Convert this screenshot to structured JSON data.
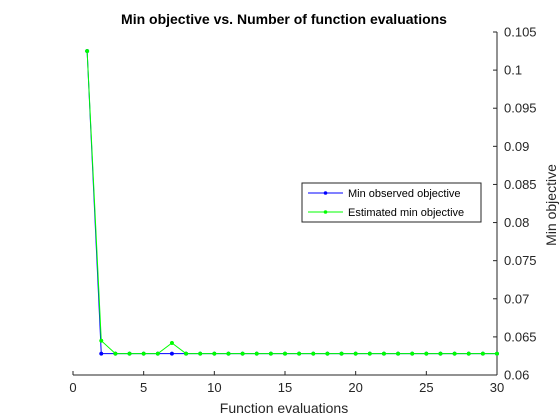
{
  "chart_data": {
    "type": "line",
    "title": "Min objective vs. Number of function evaluations",
    "xlabel": "Function evaluations",
    "ylabel": "Min objective",
    "xlim": [
      0,
      30
    ],
    "ylim": [
      0.06,
      0.105
    ],
    "x_ticks": [
      0,
      5,
      10,
      15,
      20,
      25,
      30
    ],
    "x_tick_labels": [
      "0",
      "5",
      "10",
      "15",
      "20",
      "25",
      "30"
    ],
    "y_ticks": [
      0.06,
      0.065,
      0.07,
      0.075,
      0.08,
      0.085,
      0.09,
      0.095,
      0.1,
      0.105
    ],
    "y_tick_labels": [
      "0.06",
      "0.065",
      "0.07",
      "0.075",
      "0.08",
      "0.085",
      "0.09",
      "0.095",
      "0.1",
      "0.105"
    ],
    "y_axis_side": "right",
    "grid": false,
    "legend_placement": "right",
    "x": [
      1,
      2,
      3,
      4,
      5,
      6,
      7,
      8,
      9,
      10,
      11,
      12,
      13,
      14,
      15,
      16,
      17,
      18,
      19,
      20,
      21,
      22,
      23,
      24,
      25,
      26,
      27,
      28,
      29,
      30
    ],
    "series": [
      {
        "name": "Min observed objective",
        "color": "#0000ff",
        "values": [
          0.1025,
          0.0628,
          0.0628,
          0.0628,
          0.0628,
          0.0628,
          0.0628,
          0.0628,
          0.0628,
          0.0628,
          0.0628,
          0.0628,
          0.0628,
          0.0628,
          0.0628,
          0.0628,
          0.0628,
          0.0628,
          0.0628,
          0.0628,
          0.0628,
          0.0628,
          0.0628,
          0.0628,
          0.0628,
          0.0628,
          0.0628,
          0.0628,
          0.0628,
          0.0628
        ]
      },
      {
        "name": "Estimated min objective",
        "color": "#00ff00",
        "values": [
          0.1025,
          0.0645,
          0.0628,
          0.0628,
          0.0628,
          0.0628,
          0.0642,
          0.0628,
          0.0628,
          0.0628,
          0.0628,
          0.0628,
          0.0628,
          0.0628,
          0.0628,
          0.0628,
          0.0628,
          0.0628,
          0.0628,
          0.0628,
          0.0628,
          0.0628,
          0.0628,
          0.0628,
          0.0628,
          0.0628,
          0.0628,
          0.0628,
          0.0628,
          0.0628
        ]
      }
    ]
  }
}
